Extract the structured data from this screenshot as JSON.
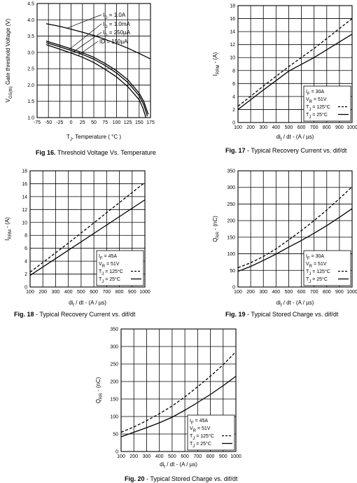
{
  "chart_data": [
    {
      "id": "fig16",
      "type": "line",
      "caption_bold": "Fig 16.",
      "caption_rest": "Threshold Voltage Vs. Temperature",
      "xlabel_main": "T",
      "xlabel_sub": "J",
      "xlabel_rest": ", Temperature ( °C )",
      "ylabel_main": "V",
      "ylabel_sub": "GS(th)",
      "ylabel_rest": " Gate threshold Voltage (V)",
      "xlim": [
        -75,
        175
      ],
      "ylim": [
        1.0,
        4.5
      ],
      "xticks": [
        "-75",
        "-50",
        "-25",
        "0",
        "25",
        "50",
        "75",
        "100",
        "125",
        "150",
        "175"
      ],
      "yticks": [
        "1.0",
        "1.5",
        "2.0",
        "2.5",
        "3.0",
        "3.5",
        "4.0",
        "4.5"
      ],
      "grid": true,
      "series": [
        {
          "name": "I D = 1.0A",
          "label_main": "I",
          "label_sub": "D",
          "label_rest": " = 1.0A",
          "dash": "solid",
          "x": [
            -55,
            -25,
            0,
            25,
            50,
            75,
            100,
            125,
            150,
            175
          ],
          "y": [
            3.88,
            3.8,
            3.71,
            3.62,
            3.52,
            3.4,
            3.27,
            3.13,
            2.97,
            2.8
          ]
        },
        {
          "name": "I D = 1.0mA",
          "label_main": "I",
          "label_sub": "D",
          "label_rest": " = 1.0mA",
          "dash": "solid",
          "x": [
            -55,
            -25,
            0,
            25,
            50,
            75,
            100,
            125,
            150,
            160,
            170
          ],
          "y": [
            3.35,
            3.22,
            3.11,
            2.99,
            2.85,
            2.66,
            2.44,
            2.16,
            1.75,
            1.5,
            1.1
          ]
        },
        {
          "name": "I D = 250µA",
          "label_main": "I",
          "label_sub": "D",
          "label_rest": " = 250µA",
          "dash": "solid",
          "x": [
            -55,
            -25,
            0,
            25,
            50,
            75,
            100,
            125,
            150,
            160,
            168
          ],
          "y": [
            3.3,
            3.17,
            3.06,
            2.94,
            2.79,
            2.6,
            2.37,
            2.08,
            1.67,
            1.4,
            1.05
          ]
        },
        {
          "name": "ID = 150µA",
          "label_main": "ID",
          "label_sub": "",
          "label_rest": " = 150µA",
          "dash": "solid",
          "x": [
            -55,
            -25,
            0,
            25,
            50,
            75,
            100,
            125,
            150,
            158,
            165
          ],
          "y": [
            3.24,
            3.1,
            2.98,
            2.85,
            2.69,
            2.48,
            2.25,
            1.95,
            1.55,
            1.3,
            1.0
          ]
        }
      ]
    },
    {
      "id": "fig17",
      "type": "line",
      "caption_bold": "Fig. 17",
      "caption_rest": " - Typical Recovery Current vs. dif/dt",
      "xlabel_main": "di",
      "xlabel_sub": "f",
      "xlabel_rest": " / dt - (A / µs)",
      "ylabel_main": "I",
      "ylabel_sub": "RRM",
      "ylabel_rest": " - (A)",
      "xlim": [
        100,
        1000
      ],
      "ylim": [
        0,
        18
      ],
      "xticks": [
        "100",
        "200",
        "300",
        "400",
        "500",
        "600",
        "700",
        "800",
        "900",
        "1000"
      ],
      "yticks": [
        "0",
        "2",
        "4",
        "6",
        "8",
        "10",
        "12",
        "14",
        "16",
        "18"
      ],
      "grid": true,
      "legend": [
        {
          "main": "I",
          "sub": "F",
          "rest": " = 30A"
        },
        {
          "main": "V",
          "sub": "R",
          "rest": " = 51V"
        },
        {
          "main": "T",
          "sub": "J",
          "rest": " = 125°C",
          "dash": "dashed"
        },
        {
          "main": "T",
          "sub": "J",
          "rest": " = 25°C",
          "dash": "solid"
        }
      ],
      "series": [
        {
          "name": "TJ = 125°C",
          "dash": "dashed",
          "x": [
            100,
            300,
            500,
            700,
            1000
          ],
          "y": [
            2.5,
            5.6,
            8.6,
            11.4,
            16.0
          ]
        },
        {
          "name": "TJ = 25°C",
          "dash": "solid",
          "x": [
            100,
            300,
            500,
            700,
            1000
          ],
          "y": [
            2.0,
            5.0,
            7.9,
            10.0,
            13.6
          ]
        }
      ]
    },
    {
      "id": "fig18",
      "type": "line",
      "caption_bold": "Fig. 18",
      "caption_rest": " - Typical Recovery Current vs. dif/dt",
      "xlabel_main": "di",
      "xlabel_sub": "f",
      "xlabel_rest": " / dt - (A / µs)",
      "ylabel_main": "I",
      "ylabel_sub": "RRM",
      "ylabel_rest": " - (A)",
      "xlim": [
        100,
        1000
      ],
      "ylim": [
        0,
        18
      ],
      "xticks": [
        "100",
        "200",
        "300",
        "400",
        "500",
        "600",
        "700",
        "800",
        "900",
        "1000"
      ],
      "yticks": [
        "0",
        "2",
        "4",
        "6",
        "8",
        "10",
        "12",
        "14",
        "16",
        "18"
      ],
      "grid": true,
      "legend": [
        {
          "main": "I",
          "sub": "F",
          "rest": " = 45A"
        },
        {
          "main": "V",
          "sub": "R",
          "rest": " = 51V"
        },
        {
          "main": "T",
          "sub": "J",
          "rest": " = 125°C",
          "dash": "dashed"
        },
        {
          "main": "T",
          "sub": "J",
          "rest": " = 25°C",
          "dash": "solid"
        }
      ],
      "series": [
        {
          "name": "TJ = 125°C",
          "dash": "dashed",
          "x": [
            100,
            400,
            700,
            1000
          ],
          "y": [
            2.3,
            6.8,
            11.5,
            16.2
          ]
        },
        {
          "name": "TJ = 25°C",
          "dash": "solid",
          "x": [
            100,
            400,
            700,
            1000
          ],
          "y": [
            1.8,
            5.7,
            9.6,
            13.5
          ]
        }
      ]
    },
    {
      "id": "fig19",
      "type": "line",
      "caption_bold": "Fig. 19",
      "caption_rest": " - Typical Stored Charge vs. dif/dt",
      "xlabel_main": "di",
      "xlabel_sub": "f",
      "xlabel_rest": " / dt - (A / µs)",
      "ylabel_main": "Q",
      "ylabel_sub": "RR",
      "ylabel_rest": " - (nC)",
      "xlim": [
        100,
        1000
      ],
      "ylim": [
        0,
        350
      ],
      "xticks": [
        "100",
        "200",
        "300",
        "400",
        "500",
        "600",
        "700",
        "800",
        "900",
        "1000"
      ],
      "yticks": [
        "0",
        "50",
        "100",
        "150",
        "200",
        "250",
        "300",
        "350"
      ],
      "grid": true,
      "legend": [
        {
          "main": "I",
          "sub": "F",
          "rest": " = 30A"
        },
        {
          "main": "V",
          "sub": "R",
          "rest": " = 51V"
        },
        {
          "main": "T",
          "sub": "J",
          "rest": " = 125°C",
          "dash": "dashed"
        },
        {
          "main": "T",
          "sub": "J",
          "rest": " = 25°C",
          "dash": "solid"
        }
      ],
      "series": [
        {
          "name": "TJ = 125°C",
          "dash": "dashed",
          "x": [
            100,
            200,
            300,
            400,
            500,
            600,
            700,
            800,
            900,
            1000
          ],
          "y": [
            58,
            73,
            92,
            115,
            142,
            170,
            200,
            232,
            266,
            302
          ]
        },
        {
          "name": "TJ = 25°C",
          "dash": "solid",
          "x": [
            100,
            200,
            300,
            400,
            500,
            600,
            700,
            800,
            900,
            1000
          ],
          "y": [
            47,
            62,
            80,
            99,
            120,
            140,
            162,
            185,
            210,
            236
          ]
        }
      ]
    },
    {
      "id": "fig20",
      "type": "line",
      "caption_bold": "Fig. 20",
      "caption_rest": " - Typical Stored Charge vs. dif/dt",
      "xlabel_main": "di",
      "xlabel_sub": "f",
      "xlabel_rest": " / dt - (A / µs)",
      "ylabel_main": "Q",
      "ylabel_sub": "RR",
      "ylabel_rest": " - (nC)",
      "xlim": [
        100,
        1000
      ],
      "ylim": [
        0,
        350
      ],
      "xticks": [
        "100",
        "200",
        "300",
        "400",
        "500",
        "600",
        "700",
        "800",
        "900",
        "1000"
      ],
      "yticks": [
        "0",
        "50",
        "100",
        "150",
        "200",
        "250",
        "300",
        "350"
      ],
      "grid": true,
      "legend": [
        {
          "main": "I",
          "sub": "F",
          "rest": " = 45A"
        },
        {
          "main": "V",
          "sub": "R",
          "rest": " = 51V"
        },
        {
          "main": "T",
          "sub": "J",
          "rest": " = 125°C",
          "dash": "dashed"
        },
        {
          "main": "T",
          "sub": "J",
          "rest": " = 25°C",
          "dash": "solid"
        }
      ],
      "series": [
        {
          "name": "TJ = 125°C",
          "dash": "dashed",
          "x": [
            100,
            200,
            300,
            400,
            500,
            600,
            700,
            800,
            900,
            1000
          ],
          "y": [
            55,
            70,
            88,
            108,
            130,
            156,
            185,
            215,
            248,
            285
          ]
        },
        {
          "name": "TJ = 25°C",
          "dash": "solid",
          "x": [
            100,
            200,
            300,
            400,
            500,
            600,
            700,
            800,
            900,
            1000
          ],
          "y": [
            42,
            55,
            68,
            82,
            98,
            118,
            140,
            163,
            188,
            215
          ]
        }
      ]
    }
  ]
}
